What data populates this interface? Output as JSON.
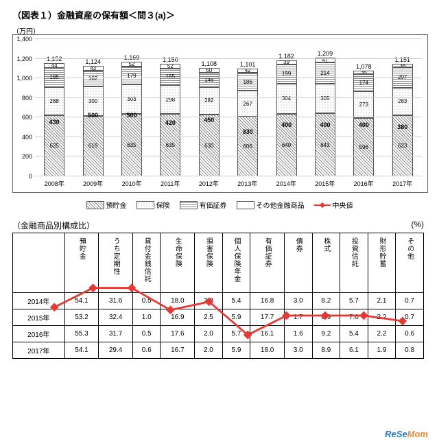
{
  "title": "（図表１）金融資産の保有額＜問３(a)＞",
  "ylabel": "（万円）",
  "chart": {
    "ymax": 1400,
    "ytick_step": 200,
    "years": [
      "2008年",
      "2009年",
      "2010年",
      "2011年",
      "2012年",
      "2013年",
      "2014年",
      "2015年",
      "2016年",
      "2017年"
    ],
    "series_names": [
      "預貯金",
      "保険",
      "有価証券",
      "その他金融商品"
    ],
    "series_colors": [
      "seg0",
      "seg1",
      "seg2",
      "seg3"
    ],
    "stacks": [
      {
        "total": 1152,
        "vals": [
          625,
          288,
          195,
          44
        ]
      },
      {
        "total": 1124,
        "vals": [
          619,
          300,
          162,
          43
        ]
      },
      {
        "total": 1169,
        "vals": [
          635,
          303,
          179,
          52
        ]
      },
      {
        "total": 1150,
        "vals": [
          635,
          298,
          165,
          52
        ]
      },
      {
        "total": 1108,
        "vals": [
          630,
          282,
          146,
          50
        ]
      },
      {
        "total": 1101,
        "vals": [
          606,
          267,
          186,
          42
        ]
      },
      {
        "total": 1182,
        "vals": [
          640,
          304,
          199,
          39
        ]
      },
      {
        "total": 1209,
        "vals": [
          643,
          305,
          214,
          47
        ]
      },
      {
        "total": 1078,
        "vals": [
          596,
          273,
          174,
          35
        ]
      },
      {
        "total": 1151,
        "vals": [
          623,
          283,
          207,
          38
        ]
      }
    ],
    "median": {
      "name": "中央値",
      "color": "#e53935",
      "values": [
        430,
        500,
        500,
        420,
        450,
        330,
        400,
        400,
        400,
        380
      ]
    }
  },
  "table": {
    "title": "（金融商品別構成比）",
    "unit": "(%)",
    "cols": [
      "預貯金",
      "うち定期性",
      "貸付金銭信託",
      "生命保険",
      "損害保険",
      "個人保険年金",
      "有価証券",
      "債券",
      "株式",
      "投資信託",
      "財形貯蓄",
      "その他"
    ],
    "rows": [
      {
        "y": "2014年",
        "c": [
          "54.1",
          "31.6",
          "0.5",
          "18.0",
          "2.3",
          "5.4",
          "16.8",
          "3.0",
          "8.2",
          "5.7",
          "2.1",
          "0.7"
        ]
      },
      {
        "y": "2015年",
        "c": [
          "53.2",
          "32.4",
          "1.0",
          "16.9",
          "2.5",
          "5.9",
          "17.7",
          "1.7",
          "8.9",
          "7.0",
          "2.2",
          "0.7"
        ]
      },
      {
        "y": "2016年",
        "c": [
          "55.3",
          "31.7",
          "0.5",
          "17.6",
          "2.0",
          "5.7",
          "16.1",
          "1.6",
          "9.2",
          "5.4",
          "2.2",
          "0.6"
        ]
      },
      {
        "y": "2017年",
        "c": [
          "54.1",
          "29.4",
          "0.6",
          "16.7",
          "2.0",
          "5.9",
          "18.0",
          "3.0",
          "8.9",
          "6.1",
          "1.9",
          "0.8"
        ]
      }
    ]
  },
  "watermark": {
    "a": "ReSe",
    "b": "Mom"
  }
}
